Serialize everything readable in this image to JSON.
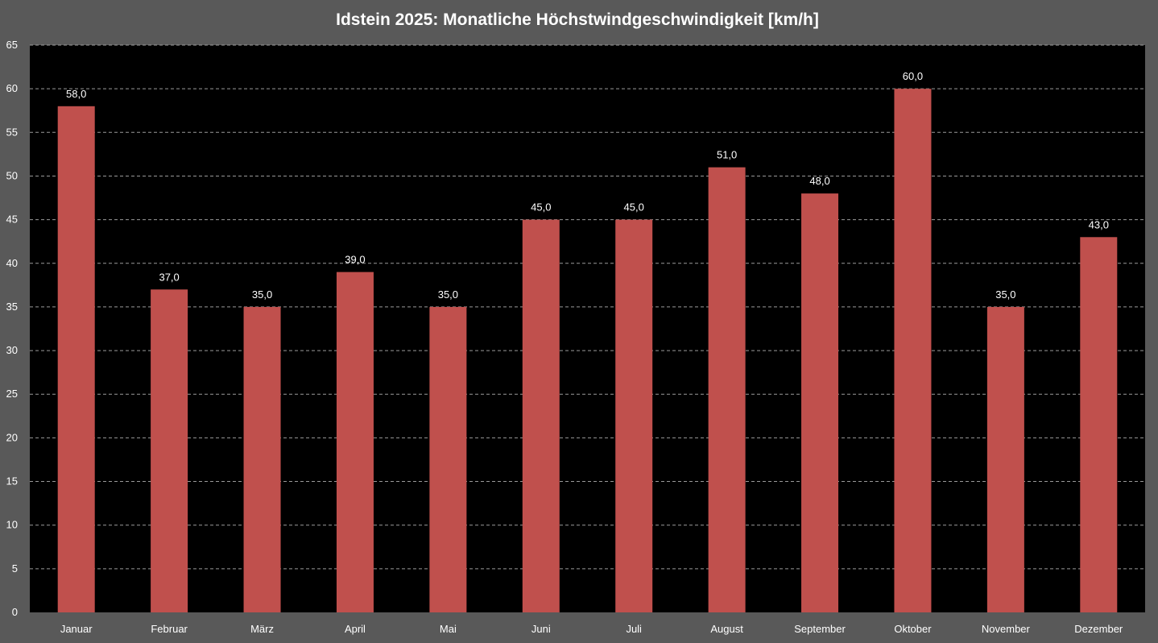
{
  "chart_data": {
    "type": "bar",
    "title": "Idstein 2025:  Monatliche Höchstwindgeschwindigkeit  [km/h]",
    "xlabel": "",
    "ylabel": "",
    "categories": [
      "Januar",
      "Februar",
      "März",
      "April",
      "Mai",
      "Juni",
      "Juli",
      "August",
      "September",
      "Oktober",
      "November",
      "Dezember"
    ],
    "values": [
      58.0,
      37.0,
      35.0,
      39.0,
      35.0,
      45.0,
      45.0,
      51.0,
      48.0,
      60.0,
      35.0,
      43.0
    ],
    "value_labels": [
      "58,0",
      "37,0",
      "35,0",
      "39,0",
      "35,0",
      "45,0",
      "45,0",
      "51,0",
      "48,0",
      "60,0",
      "35,0",
      "43,0"
    ],
    "ylim": [
      0,
      65
    ],
    "yticks": [
      0,
      5,
      10,
      15,
      20,
      25,
      30,
      35,
      40,
      45,
      50,
      55,
      60,
      65
    ],
    "grid": true,
    "legend": "none",
    "colors": {
      "background": "#595959",
      "plot_background": "#000000",
      "bar": "#c0504d",
      "text": "#ffffff",
      "grid": "#9a9a9a"
    }
  }
}
